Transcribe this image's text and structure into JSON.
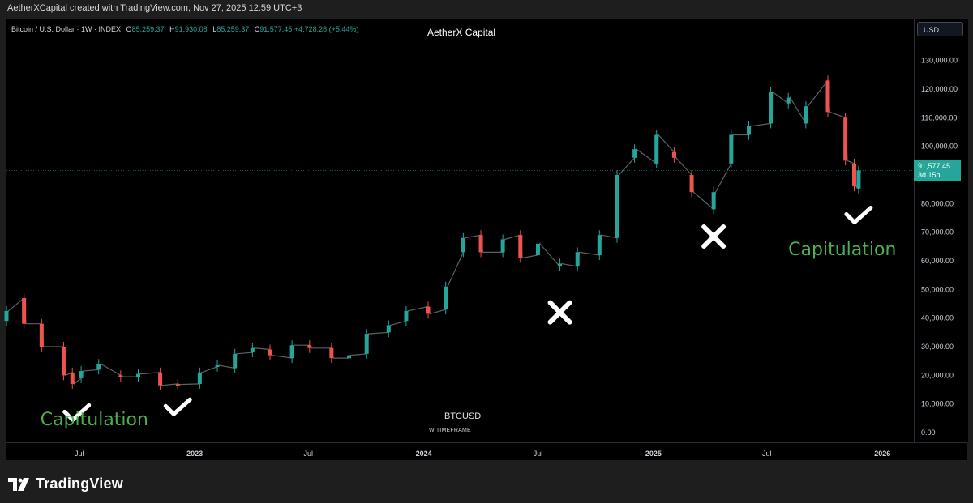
{
  "header": {
    "credit": "AetherXCapital created with TradingView.com, Nov 27, 2025 12:59 UTC+3"
  },
  "legend": {
    "symbol": "Bitcoin / U.S. Dollar · 1W · INDEX",
    "open_label": "O",
    "open": "85,259.37",
    "high_label": "H",
    "high": "91,930.08",
    "low_label": "L",
    "low": "85,259.37",
    "close_label": "C",
    "close": "91,577.45",
    "change": "+4,728.28 (+5.44%)"
  },
  "watermark": {
    "title": "AetherX Capital",
    "ticker": "BTCUSD",
    "timeframe": "W TIMEFRAME"
  },
  "scale": {
    "currency_button": "USD",
    "last_price": "91,577.45",
    "countdown": "3d 15h"
  },
  "footer": {
    "brand": "TradingView"
  },
  "colors": {
    "up": "#26a69a",
    "down": "#ef5350",
    "bubble_green": "#66bb6a",
    "bubble_red": "#c62828",
    "annotation_text": "#4caf50",
    "background": "#000000"
  },
  "chart_data": {
    "type": "candlestick",
    "ylim": [
      0,
      135000
    ],
    "yticks": [
      0,
      10000,
      20000,
      30000,
      40000,
      50000,
      60000,
      70000,
      80000,
      90000,
      100000,
      110000,
      120000,
      130000
    ],
    "ytick_labels": [
      "0.00",
      "10,000.00",
      "20,000.00",
      "30,000.00",
      "40,000.00",
      "50,000.00",
      "60,000.00",
      "70,000.00",
      "80,000.00",
      "",
      "100,000.00",
      "110,000.00",
      "120,000.00",
      "130,000.00"
    ],
    "x_ticks": [
      {
        "date": "2022-07-01",
        "label": "Jul"
      },
      {
        "date": "2023-01-01",
        "label": "2023"
      },
      {
        "date": "2023-07-01",
        "label": "Jul"
      },
      {
        "date": "2024-01-01",
        "label": "2024"
      },
      {
        "date": "2024-07-01",
        "label": "Jul"
      },
      {
        "date": "2025-01-01",
        "label": "2025"
      },
      {
        "date": "2025-07-01",
        "label": "Jul"
      },
      {
        "date": "2026-01-01",
        "label": "2026"
      }
    ],
    "xlim": [
      "2022-03-07",
      "2026-02-20"
    ],
    "series": [
      {
        "name": "Bitcoin / U.S. Dollar",
        "points": [
          [
            "2022-03-07",
            39000,
            42500
          ],
          [
            "2022-04-04",
            47000,
            38000
          ],
          [
            "2022-05-02",
            38000,
            30000
          ],
          [
            "2022-06-06",
            30000,
            20000
          ],
          [
            "2022-06-20",
            21000,
            17000
          ],
          [
            "2022-07-04",
            19000,
            21500
          ],
          [
            "2022-08-01",
            22000,
            24000
          ],
          [
            "2022-09-05",
            20000,
            19500
          ],
          [
            "2022-10-03",
            19500,
            20500
          ],
          [
            "2022-11-07",
            21000,
            16500
          ],
          [
            "2022-12-05",
            17000,
            16800
          ],
          [
            "2023-01-09",
            17000,
            21000
          ],
          [
            "2023-02-06",
            23000,
            23500
          ],
          [
            "2023-03-06",
            22500,
            27500
          ],
          [
            "2023-04-03",
            28000,
            29500
          ],
          [
            "2023-05-01",
            29000,
            27000
          ],
          [
            "2023-06-05",
            26000,
            30500
          ],
          [
            "2023-07-03",
            30500,
            29500
          ],
          [
            "2023-08-07",
            29500,
            26000
          ],
          [
            "2023-09-04",
            26000,
            27000
          ],
          [
            "2023-10-02",
            27500,
            34500
          ],
          [
            "2023-11-06",
            35000,
            37500
          ],
          [
            "2023-12-04",
            39000,
            42500
          ],
          [
            "2024-01-08",
            44000,
            41500
          ],
          [
            "2024-02-05",
            43000,
            51000
          ],
          [
            "2024-03-04",
            63000,
            68000
          ],
          [
            "2024-04-01",
            69000,
            63000
          ],
          [
            "2024-05-06",
            63000,
            67500
          ],
          [
            "2024-06-03",
            69000,
            61000
          ],
          [
            "2024-07-01",
            62000,
            66000
          ],
          [
            "2024-08-05",
            58000,
            59000
          ],
          [
            "2024-09-02",
            58000,
            63000
          ],
          [
            "2024-10-07",
            62000,
            69000
          ],
          [
            "2024-11-04",
            68000,
            90000
          ],
          [
            "2024-12-02",
            96000,
            99000
          ],
          [
            "2025-01-06",
            94000,
            104000
          ],
          [
            "2025-02-03",
            98000,
            96000
          ],
          [
            "2025-03-03",
            90000,
            84000
          ],
          [
            "2025-04-07",
            78000,
            84000
          ],
          [
            "2025-05-05",
            94000,
            104000
          ],
          [
            "2025-06-02",
            104000,
            107000
          ],
          [
            "2025-07-07",
            108000,
            119000
          ],
          [
            "2025-08-04",
            115000,
            117000
          ],
          [
            "2025-09-01",
            108000,
            114000
          ],
          [
            "2025-10-06",
            123000,
            112000
          ],
          [
            "2025-11-03",
            110000,
            95000
          ],
          [
            "2025-11-17",
            94000,
            86000
          ],
          [
            "2025-11-24",
            85259.37,
            91577.45
          ]
        ]
      }
    ],
    "last_price": 91577.45,
    "annotations": [
      {
        "type": "check",
        "date": "2022-06-27",
        "value": 5000
      },
      {
        "type": "text",
        "date": "2022-07-25",
        "value": 2500,
        "text": "Capitulation"
      },
      {
        "type": "check",
        "date": "2022-12-05",
        "value": 7000
      },
      {
        "type": "cross",
        "date": "2024-08-05",
        "value": 42000
      },
      {
        "type": "cross",
        "date": "2025-04-07",
        "value": 68500
      },
      {
        "type": "check",
        "date": "2025-11-24",
        "value": 74000
      },
      {
        "type": "text",
        "date": "2025-10-29",
        "value": 62000,
        "text": "Capitulation"
      }
    ]
  }
}
